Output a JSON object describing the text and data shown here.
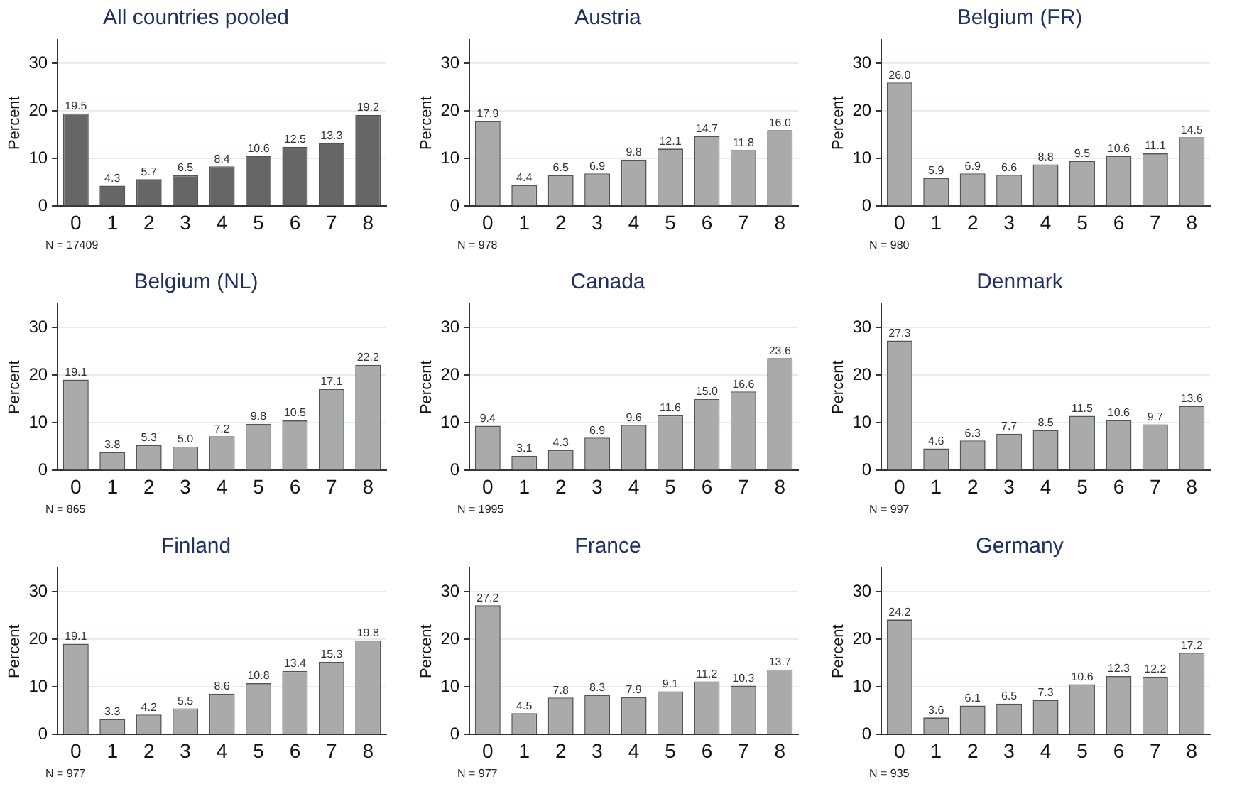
{
  "chart_data": [
    {
      "type": "bar",
      "title": "All countries pooled",
      "ylabel": "Percent",
      "categories": [
        "0",
        "1",
        "2",
        "3",
        "4",
        "5",
        "6",
        "7",
        "8"
      ],
      "values": [
        19.5,
        4.3,
        5.7,
        6.5,
        8.4,
        10.6,
        12.5,
        13.3,
        19.2
      ],
      "value_labels": [
        "19.5",
        "4.3",
        "5.7",
        "6.5",
        "8.4",
        "10.6",
        "12.5",
        "13.3",
        "19.2"
      ],
      "color": "#666666",
      "ylim": [
        0,
        35
      ],
      "yticks": [
        0,
        10,
        20,
        30
      ],
      "grid": "y",
      "annotations": [
        "N = 17409"
      ]
    },
    {
      "type": "bar",
      "title": "Austria",
      "ylabel": "Percent",
      "categories": [
        "0",
        "1",
        "2",
        "3",
        "4",
        "5",
        "6",
        "7",
        "8"
      ],
      "values": [
        17.9,
        4.4,
        6.5,
        6.9,
        9.8,
        12.1,
        14.7,
        11.8,
        16.0
      ],
      "value_labels": [
        "17.9",
        "4.4",
        "6.5",
        "6.9",
        "9.8",
        "12.1",
        "14.7",
        "11.8",
        "16.0"
      ],
      "color": "#aaaaaa",
      "ylim": [
        0,
        35
      ],
      "yticks": [
        0,
        10,
        20,
        30
      ],
      "grid": "y",
      "annotations": [
        "N = 978"
      ]
    },
    {
      "type": "bar",
      "title": "Belgium (FR)",
      "ylabel": "Percent",
      "categories": [
        "0",
        "1",
        "2",
        "3",
        "4",
        "5",
        "6",
        "7",
        "8"
      ],
      "values": [
        26.0,
        5.9,
        6.9,
        6.6,
        8.8,
        9.5,
        10.6,
        11.1,
        14.5
      ],
      "value_labels": [
        "26.0",
        "5.9",
        "6.9",
        "6.6",
        "8.8",
        "9.5",
        "10.6",
        "11.1",
        "14.5"
      ],
      "color": "#aaaaaa",
      "ylim": [
        0,
        35
      ],
      "yticks": [
        0,
        10,
        20,
        30
      ],
      "grid": "y",
      "annotations": [
        "N = 980"
      ]
    },
    {
      "type": "bar",
      "title": "Belgium (NL)",
      "ylabel": "Percent",
      "categories": [
        "0",
        "1",
        "2",
        "3",
        "4",
        "5",
        "6",
        "7",
        "8"
      ],
      "values": [
        19.1,
        3.8,
        5.3,
        5.0,
        7.2,
        9.8,
        10.5,
        17.1,
        22.2
      ],
      "value_labels": [
        "19.1",
        "3.8",
        "5.3",
        "5.0",
        "7.2",
        "9.8",
        "10.5",
        "17.1",
        "22.2"
      ],
      "color": "#aaaaaa",
      "ylim": [
        0,
        35
      ],
      "yticks": [
        0,
        10,
        20,
        30
      ],
      "grid": "y",
      "annotations": [
        "N = 865"
      ]
    },
    {
      "type": "bar",
      "title": "Canada",
      "ylabel": "Percent",
      "categories": [
        "0",
        "1",
        "2",
        "3",
        "4",
        "5",
        "6",
        "7",
        "8"
      ],
      "values": [
        9.4,
        3.1,
        4.3,
        6.9,
        9.6,
        11.6,
        15.0,
        16.6,
        23.6
      ],
      "value_labels": [
        "9.4",
        "3.1",
        "4.3",
        "6.9",
        "9.6",
        "11.6",
        "15.0",
        "16.6",
        "23.6"
      ],
      "color": "#aaaaaa",
      "ylim": [
        0,
        35
      ],
      "yticks": [
        0,
        10,
        20,
        30
      ],
      "grid": "y",
      "annotations": [
        "N = 1995"
      ]
    },
    {
      "type": "bar",
      "title": "Denmark",
      "ylabel": "Percent",
      "categories": [
        "0",
        "1",
        "2",
        "3",
        "4",
        "5",
        "6",
        "7",
        "8"
      ],
      "values": [
        27.3,
        4.6,
        6.3,
        7.7,
        8.5,
        11.5,
        10.6,
        9.7,
        13.6
      ],
      "value_labels": [
        "27.3",
        "4.6",
        "6.3",
        "7.7",
        "8.5",
        "11.5",
        "10.6",
        "9.7",
        "13.6"
      ],
      "color": "#aaaaaa",
      "ylim": [
        0,
        35
      ],
      "yticks": [
        0,
        10,
        20,
        30
      ],
      "grid": "y",
      "annotations": [
        "N = 997"
      ]
    },
    {
      "type": "bar",
      "title": "Finland",
      "ylabel": "Percent",
      "categories": [
        "0",
        "1",
        "2",
        "3",
        "4",
        "5",
        "6",
        "7",
        "8"
      ],
      "values": [
        19.1,
        3.3,
        4.2,
        5.5,
        8.6,
        10.8,
        13.4,
        15.3,
        19.8
      ],
      "value_labels": [
        "19.1",
        "3.3",
        "4.2",
        "5.5",
        "8.6",
        "10.8",
        "13.4",
        "15.3",
        "19.8"
      ],
      "color": "#aaaaaa",
      "ylim": [
        0,
        35
      ],
      "yticks": [
        0,
        10,
        20,
        30
      ],
      "grid": "y",
      "annotations": [
        "N = 977"
      ]
    },
    {
      "type": "bar",
      "title": "France",
      "ylabel": "Percent",
      "categories": [
        "0",
        "1",
        "2",
        "3",
        "4",
        "5",
        "6",
        "7",
        "8"
      ],
      "values": [
        27.2,
        4.5,
        7.8,
        8.3,
        7.9,
        9.1,
        11.2,
        10.3,
        13.7
      ],
      "value_labels": [
        "27.2",
        "4.5",
        "7.8",
        "8.3",
        "7.9",
        "9.1",
        "11.2",
        "10.3",
        "13.7"
      ],
      "color": "#aaaaaa",
      "ylim": [
        0,
        35
      ],
      "yticks": [
        0,
        10,
        20,
        30
      ],
      "grid": "y",
      "annotations": [
        "N = 977"
      ]
    },
    {
      "type": "bar",
      "title": "Germany",
      "ylabel": "Percent",
      "categories": [
        "0",
        "1",
        "2",
        "3",
        "4",
        "5",
        "6",
        "7",
        "8"
      ],
      "values": [
        24.2,
        3.6,
        6.1,
        6.5,
        7.3,
        10.6,
        12.3,
        12.2,
        17.2
      ],
      "value_labels": [
        "24.2",
        "3.6",
        "6.1",
        "6.5",
        "7.3",
        "10.6",
        "12.3",
        "12.2",
        "17.2"
      ],
      "color": "#aaaaaa",
      "ylim": [
        0,
        35
      ],
      "yticks": [
        0,
        10,
        20,
        30
      ],
      "grid": "y",
      "annotations": [
        "N = 935"
      ]
    }
  ]
}
